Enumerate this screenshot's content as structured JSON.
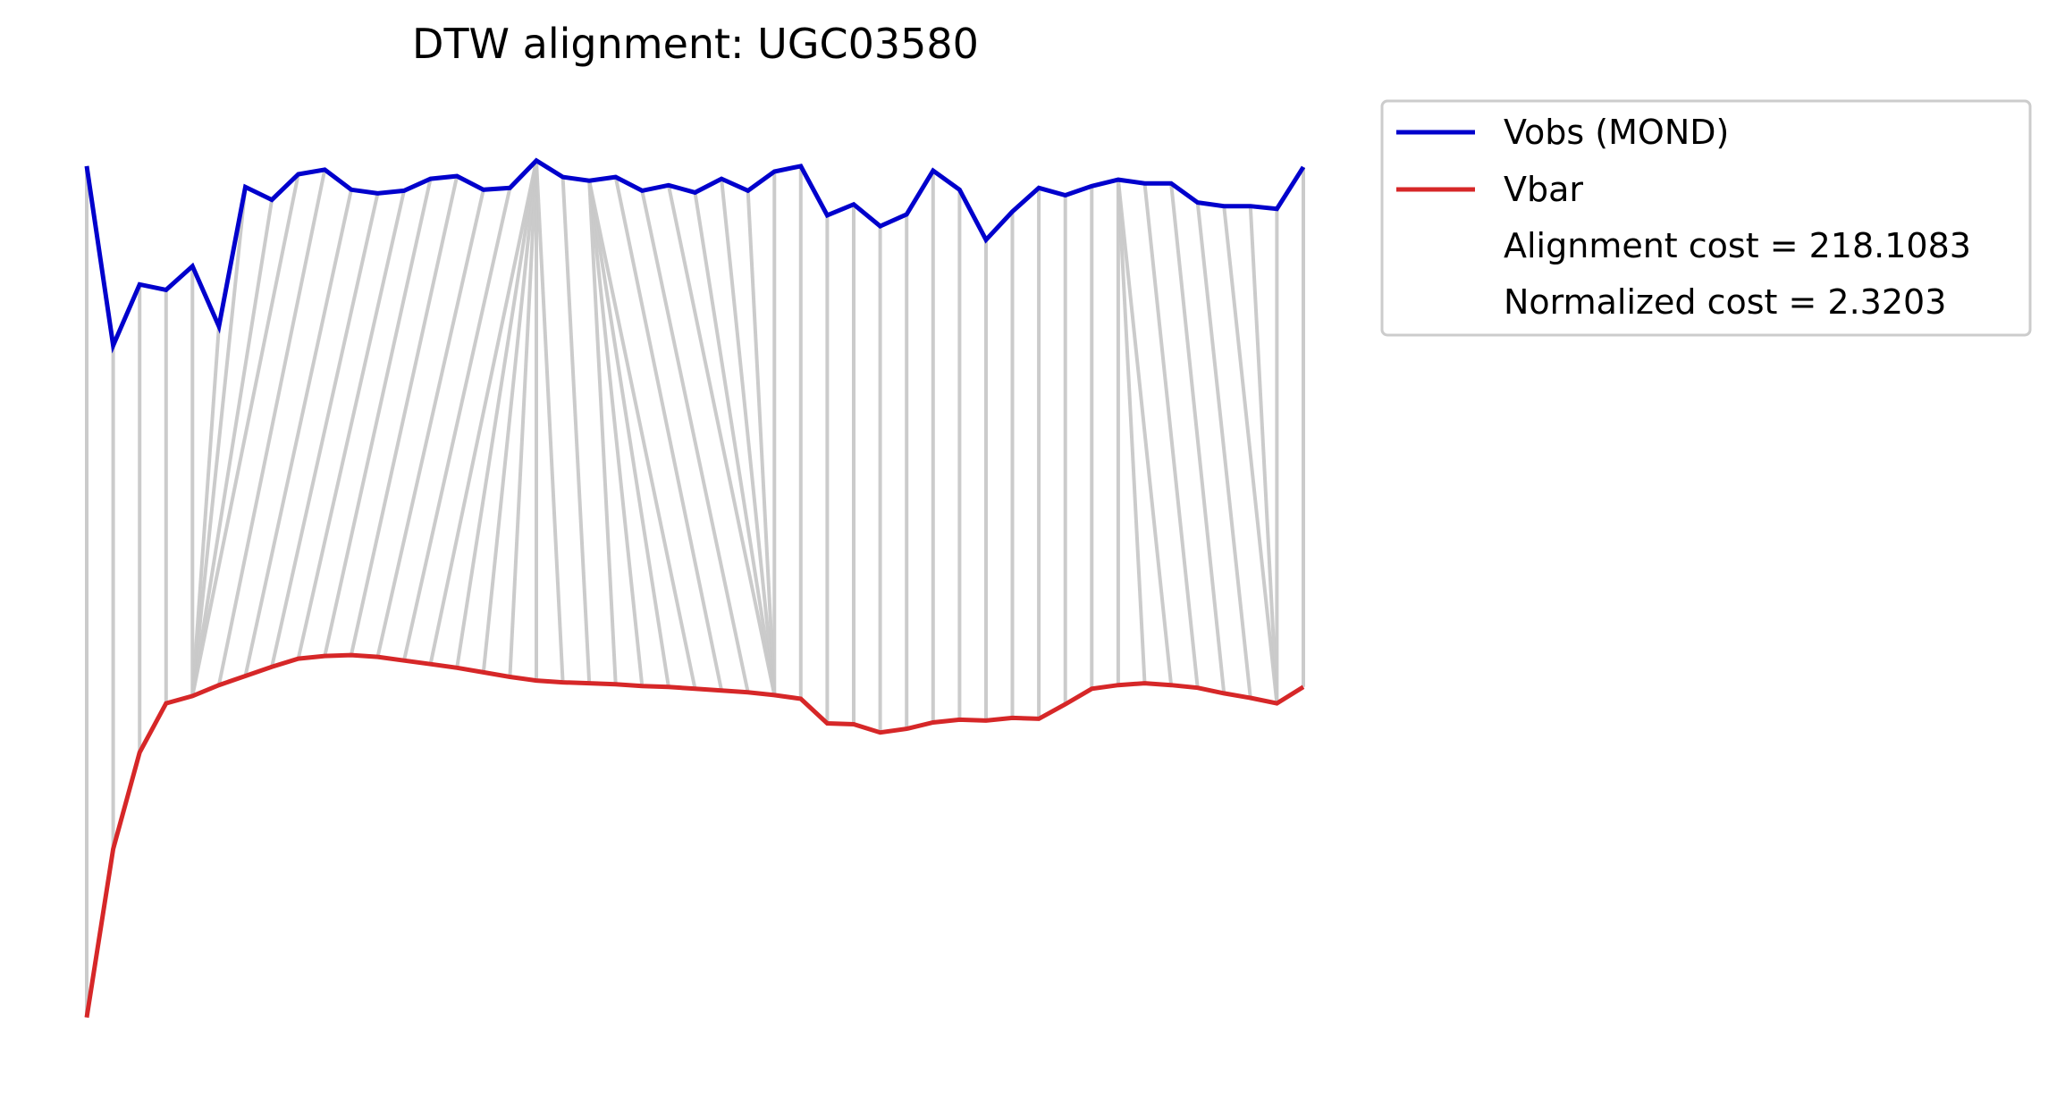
{
  "chart_data": {
    "type": "line",
    "title": "DTW alignment: UGC03580",
    "x": [
      0,
      1,
      2,
      3,
      4,
      5,
      6,
      7,
      8,
      9,
      10,
      11,
      12,
      13,
      14,
      15,
      16,
      17,
      18,
      19,
      20,
      21,
      22,
      23,
      24,
      25,
      26,
      27,
      28,
      29,
      30,
      31,
      32,
      33,
      34,
      35,
      36,
      37,
      38,
      39,
      40,
      41,
      42,
      43,
      44,
      45,
      46
    ],
    "series": [
      {
        "name": "Vobs (MOND)",
        "color": "#0000cc",
        "values": [
          0.955,
          0.758,
          0.825,
          0.819,
          0.845,
          0.779,
          0.932,
          0.918,
          0.946,
          0.951,
          0.929,
          0.925,
          0.928,
          0.941,
          0.944,
          0.929,
          0.931,
          0.961,
          0.943,
          0.939,
          0.943,
          0.928,
          0.934,
          0.926,
          0.941,
          0.928,
          0.949,
          0.955,
          0.901,
          0.913,
          0.889,
          0.902,
          0.95,
          0.929,
          0.874,
          0.905,
          0.931,
          0.923,
          0.933,
          0.94,
          0.936,
          0.936,
          0.915,
          0.911,
          0.911,
          0.908,
          0.954
        ]
      },
      {
        "name": "Vbar",
        "color": "#d62728",
        "values": [
          0.02,
          0.205,
          0.311,
          0.365,
          0.373,
          0.385,
          0.395,
          0.405,
          0.414,
          0.417,
          0.418,
          0.416,
          0.412,
          0.408,
          0.404,
          0.399,
          0.394,
          0.39,
          0.388,
          0.387,
          0.386,
          0.384,
          0.383,
          0.381,
          0.379,
          0.377,
          0.374,
          0.37,
          0.343,
          0.342,
          0.333,
          0.337,
          0.344,
          0.347,
          0.346,
          0.349,
          0.348,
          0.364,
          0.381,
          0.385,
          0.387,
          0.385,
          0.382,
          0.376,
          0.371,
          0.365,
          0.383
        ]
      }
    ],
    "alignment_pairs": [
      [
        0,
        0
      ],
      [
        1,
        1
      ],
      [
        2,
        2
      ],
      [
        3,
        3
      ],
      [
        4,
        4
      ],
      [
        5,
        4
      ],
      [
        6,
        4
      ],
      [
        7,
        4
      ],
      [
        8,
        4
      ],
      [
        9,
        5
      ],
      [
        10,
        6
      ],
      [
        11,
        7
      ],
      [
        12,
        8
      ],
      [
        13,
        9
      ],
      [
        14,
        10
      ],
      [
        15,
        11
      ],
      [
        16,
        12
      ],
      [
        17,
        13
      ],
      [
        17,
        14
      ],
      [
        17,
        15
      ],
      [
        17,
        16
      ],
      [
        17,
        17
      ],
      [
        17,
        18
      ],
      [
        18,
        19
      ],
      [
        19,
        20
      ],
      [
        19,
        21
      ],
      [
        19,
        22
      ],
      [
        19,
        23
      ],
      [
        20,
        24
      ],
      [
        21,
        25
      ],
      [
        22,
        26
      ],
      [
        23,
        26
      ],
      [
        24,
        26
      ],
      [
        25,
        26
      ],
      [
        26,
        26
      ],
      [
        27,
        27
      ],
      [
        28,
        28
      ],
      [
        29,
        29
      ],
      [
        30,
        30
      ],
      [
        31,
        31
      ],
      [
        32,
        32
      ],
      [
        33,
        33
      ],
      [
        34,
        34
      ],
      [
        35,
        35
      ],
      [
        36,
        36
      ],
      [
        37,
        37
      ],
      [
        38,
        38
      ],
      [
        39,
        39
      ],
      [
        39,
        40
      ],
      [
        39,
        41
      ],
      [
        40,
        42
      ],
      [
        41,
        43
      ],
      [
        42,
        44
      ],
      [
        43,
        45
      ],
      [
        44,
        45
      ],
      [
        45,
        45
      ],
      [
        46,
        46
      ]
    ],
    "connector_color": "#c8c8c8",
    "legend": {
      "placement": "outside-top-right",
      "entries": [
        "Vobs (MOND)",
        "Vbar",
        "Alignment cost = 218.1083",
        "Normalized cost = 2.3203"
      ]
    },
    "ylim": [
      0,
      1
    ],
    "axes_visible": false,
    "grid": false
  }
}
